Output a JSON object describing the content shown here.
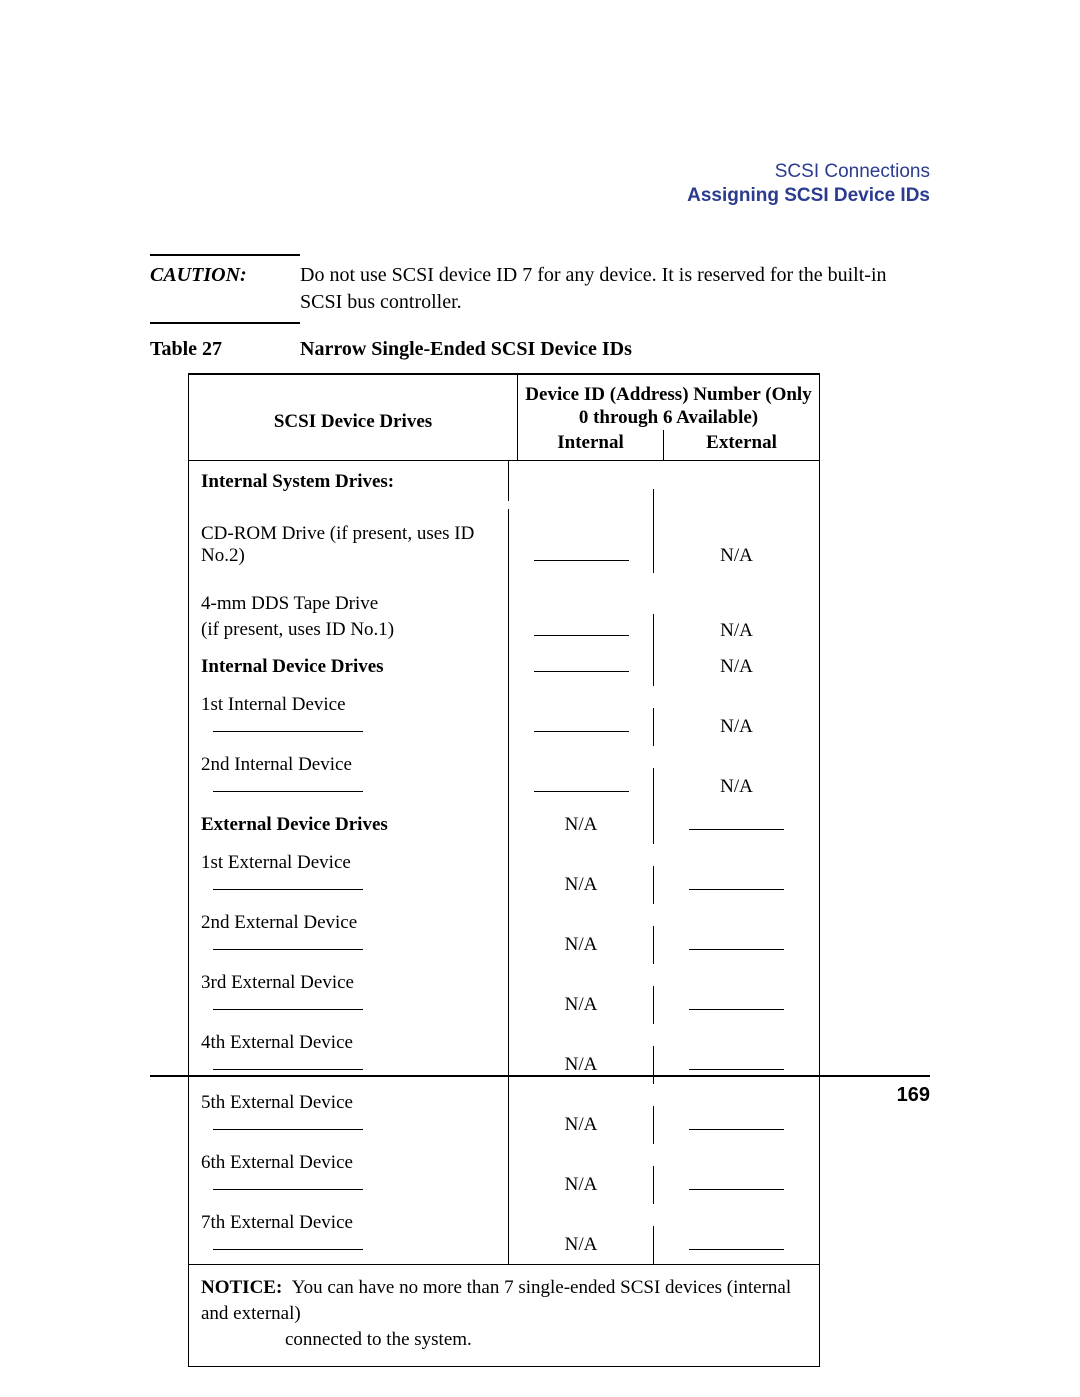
{
  "header": {
    "section": "SCSI Connections",
    "subsection": "Assigning SCSI Device IDs"
  },
  "caution": {
    "label": "CAUTION:",
    "text": "Do not use SCSI device ID 7 for any device. It is reserved for the built-in SCSI bus controller."
  },
  "table": {
    "label": "Table 27",
    "title": "Narrow Single-Ended SCSI Device IDs",
    "head_left": "SCSI Device Drives",
    "head_right_top": "Device ID (Address) Number (Only 0 through 6 Available)",
    "head_internal": "Internal",
    "head_external": "External",
    "na": "N/A",
    "sections": {
      "internal_system": "Internal System Drives:",
      "cdrom": "CD-ROM Drive (if present, uses ID No.2)",
      "tape_l1": "4-mm DDS Tape Drive",
      "tape_l2": "(if present, uses ID No.1)",
      "internal_device": "Internal Device Drives",
      "int1": "1st Internal Device",
      "int2": "2nd Internal Device",
      "external_device": "External Device Drives",
      "ext1": "1st External Device",
      "ext2": "2nd External Device",
      "ext3": "3rd External Device",
      "ext4": "4th External Device",
      "ext5": "5th External Device",
      "ext6": "6th External Device",
      "ext7": "7th External Device"
    },
    "notice_label": "NOTICE:",
    "notice_text_1": "You can have no more than 7 single-ended SCSI devices (internal and external)",
    "notice_text_2": "connected to the system."
  },
  "page_number": "169",
  "colors": {
    "header_blue": "#2b3b8f",
    "text": "#000000",
    "background": "#ffffff"
  }
}
